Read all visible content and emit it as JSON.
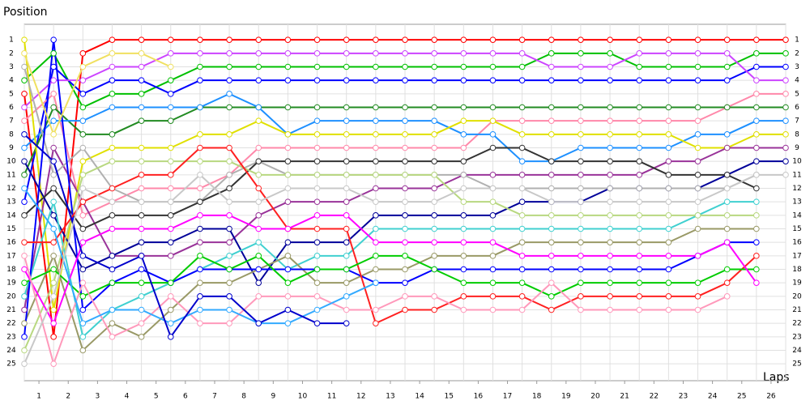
{
  "chart_data": {
    "type": "line",
    "title": "Position",
    "x_label": "Laps",
    "x": [
      0,
      1,
      2,
      3,
      4,
      5,
      6,
      7,
      8,
      9,
      10,
      11,
      12,
      13,
      14,
      15,
      16,
      17,
      18,
      19,
      20,
      21,
      22,
      23,
      24,
      25,
      26
    ],
    "xlim": [
      0,
      26
    ],
    "xticks": [
      {
        "value": 0.5,
        "label": "1"
      },
      {
        "value": 1.5,
        "label": "2"
      },
      {
        "value": 2.5,
        "label": "3"
      },
      {
        "value": 3.5,
        "label": "4"
      },
      {
        "value": 4.5,
        "label": "5"
      },
      {
        "value": 5.5,
        "label": "6"
      },
      {
        "value": 6.5,
        "label": "7"
      },
      {
        "value": 7.5,
        "label": "8"
      },
      {
        "value": 8.5,
        "label": "9"
      },
      {
        "value": 9.5,
        "label": "10"
      },
      {
        "value": 10.5,
        "label": "11"
      },
      {
        "value": 11.5,
        "label": "12"
      },
      {
        "value": 12.5,
        "label": "13"
      },
      {
        "value": 13.5,
        "label": "14"
      },
      {
        "value": 14.5,
        "label": "15"
      },
      {
        "value": 15.5,
        "label": "16"
      },
      {
        "value": 16.5,
        "label": "17"
      },
      {
        "value": 17.5,
        "label": "18"
      },
      {
        "value": 18.5,
        "label": "19"
      },
      {
        "value": 19.5,
        "label": "20"
      },
      {
        "value": 20.5,
        "label": "21"
      },
      {
        "value": 21.5,
        "label": "22"
      },
      {
        "value": 22.5,
        "label": "23"
      },
      {
        "value": 23.5,
        "label": "24"
      },
      {
        "value": 24.5,
        "label": "25"
      },
      {
        "value": 25.5,
        "label": "26"
      }
    ],
    "ylim": [
      26.25,
      -0.15
    ],
    "yticks": [
      1,
      2,
      3,
      4,
      5,
      6,
      7,
      8,
      9,
      10,
      11,
      12,
      13,
      14,
      15,
      16,
      17,
      18,
      19,
      20,
      21,
      22,
      23,
      24,
      25
    ],
    "grid": true,
    "series": [
      {
        "color": "#ff0000",
        "values": [
          5,
          23,
          2,
          1,
          1,
          1,
          1,
          1,
          1,
          1,
          1,
          1,
          1,
          1,
          1,
          1,
          1,
          1,
          1,
          1,
          1,
          1,
          1,
          1,
          1,
          1,
          1
        ]
      },
      {
        "color": "#00c000",
        "values": [
          4,
          2,
          6,
          5,
          5,
          4,
          3,
          3,
          3,
          3,
          3,
          3,
          3,
          3,
          3,
          3,
          3,
          3,
          2,
          2,
          2,
          3,
          3,
          3,
          3,
          2,
          2
        ]
      },
      {
        "color": "#0000ff",
        "values": [
          13,
          3,
          5,
          4,
          4,
          5,
          4,
          4,
          4,
          4,
          4,
          4,
          4,
          4,
          4,
          4,
          4,
          4,
          4,
          4,
          4,
          4,
          4,
          4,
          4,
          3,
          3
        ]
      },
      {
        "color": "#cc44ff",
        "values": [
          6,
          4,
          4,
          3,
          3,
          2,
          2,
          2,
          2,
          2,
          2,
          2,
          2,
          2,
          2,
          2,
          2,
          2,
          3,
          3,
          3,
          2,
          2,
          2,
          2,
          4,
          4
        ]
      },
      {
        "color": "#ff88aa",
        "values": [
          7,
          5,
          14,
          13,
          12,
          12,
          12,
          11,
          9,
          9,
          9,
          9,
          9,
          9,
          9,
          9,
          7,
          7,
          7,
          7,
          7,
          7,
          7,
          7,
          6,
          5,
          5
        ]
      },
      {
        "color": "#228b22",
        "values": [
          11,
          6,
          8,
          8,
          7,
          7,
          6,
          6,
          6,
          6,
          6,
          6,
          6,
          6,
          6,
          6,
          6,
          6,
          6,
          6,
          6,
          6,
          6,
          6,
          6,
          6,
          6
        ]
      },
      {
        "color": "#1e90ff",
        "values": [
          9,
          7,
          7,
          6,
          6,
          6,
          6,
          5,
          6,
          8,
          7,
          7,
          7,
          7,
          7,
          8,
          8,
          10,
          10,
          9,
          9,
          9,
          9,
          8,
          8,
          7,
          7
        ]
      },
      {
        "color": "#e0e000",
        "values": [
          1,
          21,
          10,
          9,
          9,
          9,
          8,
          8,
          7,
          8,
          8,
          8,
          8,
          8,
          8,
          7,
          7,
          8,
          8,
          8,
          8,
          8,
          8,
          9,
          9,
          8,
          8
        ]
      },
      {
        "color": "#993399",
        "values": [
          21,
          9,
          13,
          17,
          17,
          17,
          16,
          16,
          14,
          13,
          13,
          13,
          12,
          12,
          12,
          11,
          11,
          11,
          11,
          11,
          11,
          11,
          10,
          10,
          9,
          9,
          9
        ]
      },
      {
        "color": "#000099",
        "values": [
          10,
          14,
          18,
          17,
          16,
          16,
          15,
          15,
          19,
          16,
          16,
          16,
          14,
          14,
          14,
          14,
          14,
          13,
          13,
          13,
          12,
          12,
          12,
          12,
          11,
          10,
          10
        ]
      },
      {
        "color": "#b0b0b0",
        "values": [
          3,
          11,
          9,
          12,
          13,
          13,
          13,
          11,
          10,
          11,
          11,
          11,
          11,
          11,
          11,
          11,
          12,
          12,
          12,
          12,
          12,
          12,
          12,
          12,
          12,
          11,
          null
        ]
      },
      {
        "color": "#333333",
        "values": [
          14,
          12,
          15,
          14,
          14,
          14,
          13,
          12,
          10,
          10,
          10,
          10,
          10,
          10,
          10,
          10,
          9,
          9,
          10,
          10,
          10,
          10,
          11,
          11,
          11,
          12,
          null
        ]
      },
      {
        "color": "#40d0d0",
        "values": [
          20,
          13,
          23,
          21,
          20,
          19,
          18,
          17,
          16,
          18,
          17,
          17,
          15,
          15,
          15,
          15,
          15,
          15,
          15,
          15,
          15,
          15,
          15,
          14,
          13,
          13,
          null
        ]
      },
      {
        "color": "#b8d880",
        "values": [
          24,
          19,
          11,
          10,
          10,
          10,
          10,
          10,
          11,
          11,
          11,
          11,
          11,
          11,
          11,
          13,
          13,
          14,
          14,
          14,
          14,
          14,
          14,
          14,
          14,
          14,
          null
        ]
      },
      {
        "color": "#999966",
        "values": [
          22,
          17,
          24,
          22,
          23,
          21,
          19,
          19,
          18,
          17,
          19,
          19,
          18,
          18,
          17,
          17,
          17,
          16,
          16,
          16,
          16,
          16,
          16,
          15,
          15,
          15,
          null
        ]
      },
      {
        "color": "#0000ff",
        "values": [
          23,
          1,
          21,
          19,
          18,
          19,
          18,
          18,
          18,
          18,
          18,
          18,
          19,
          19,
          18,
          18,
          18,
          18,
          18,
          18,
          18,
          18,
          18,
          17,
          16,
          16,
          null
        ]
      },
      {
        "color": "#ff2020",
        "values": [
          16,
          16,
          13,
          12,
          11,
          11,
          9,
          9,
          12,
          15,
          15,
          15,
          22,
          21,
          21,
          20,
          20,
          20,
          21,
          20,
          20,
          20,
          20,
          20,
          19,
          17,
          null
        ]
      },
      {
        "color": "#00cc00",
        "values": [
          19,
          18,
          20,
          19,
          19,
          19,
          17,
          18,
          17,
          19,
          18,
          18,
          17,
          17,
          18,
          19,
          19,
          19,
          20,
          19,
          19,
          19,
          19,
          19,
          18,
          18,
          null
        ]
      },
      {
        "color": "#ff00ff",
        "values": [
          18,
          22,
          16,
          15,
          15,
          15,
          14,
          14,
          15,
          15,
          14,
          14,
          16,
          16,
          16,
          16,
          16,
          17,
          17,
          17,
          17,
          17,
          17,
          17,
          16,
          19,
          null
        ]
      },
      {
        "color": "#ff99bb",
        "values": [
          17,
          25,
          19,
          23,
          22,
          20,
          22,
          22,
          20,
          20,
          20,
          21,
          21,
          20,
          20,
          21,
          21,
          21,
          19,
          21,
          21,
          21,
          21,
          21,
          20,
          null,
          null
        ]
      },
      {
        "color": "#33aaff",
        "values": [
          12,
          15,
          22,
          21,
          21,
          22,
          21,
          21,
          22,
          22,
          21,
          20,
          19,
          null,
          null,
          null,
          null,
          null,
          null,
          null,
          null,
          null,
          null,
          null,
          null,
          null,
          null
        ]
      },
      {
        "color": "#0000cc",
        "values": [
          8,
          10,
          17,
          18,
          17,
          23,
          20,
          20,
          22,
          21,
          22,
          22,
          null,
          null,
          null,
          null,
          null,
          null,
          null,
          null,
          null,
          null,
          null,
          null,
          null,
          null,
          null
        ]
      },
      {
        "color": "#c8c8c8",
        "values": [
          25,
          20,
          12,
          13,
          13,
          13,
          11,
          13,
          13,
          12,
          12,
          12,
          13,
          13,
          13,
          12,
          12,
          12,
          13,
          13,
          13,
          13,
          13,
          13,
          12,
          11,
          11
        ]
      },
      {
        "color": "#f0e060",
        "values": [
          2,
          8,
          3,
          2,
          2,
          3,
          null,
          null,
          null,
          null,
          null,
          null,
          null,
          null,
          null,
          null,
          null,
          null,
          null,
          null,
          null,
          null,
          null,
          null,
          null,
          null,
          null
        ]
      }
    ]
  }
}
